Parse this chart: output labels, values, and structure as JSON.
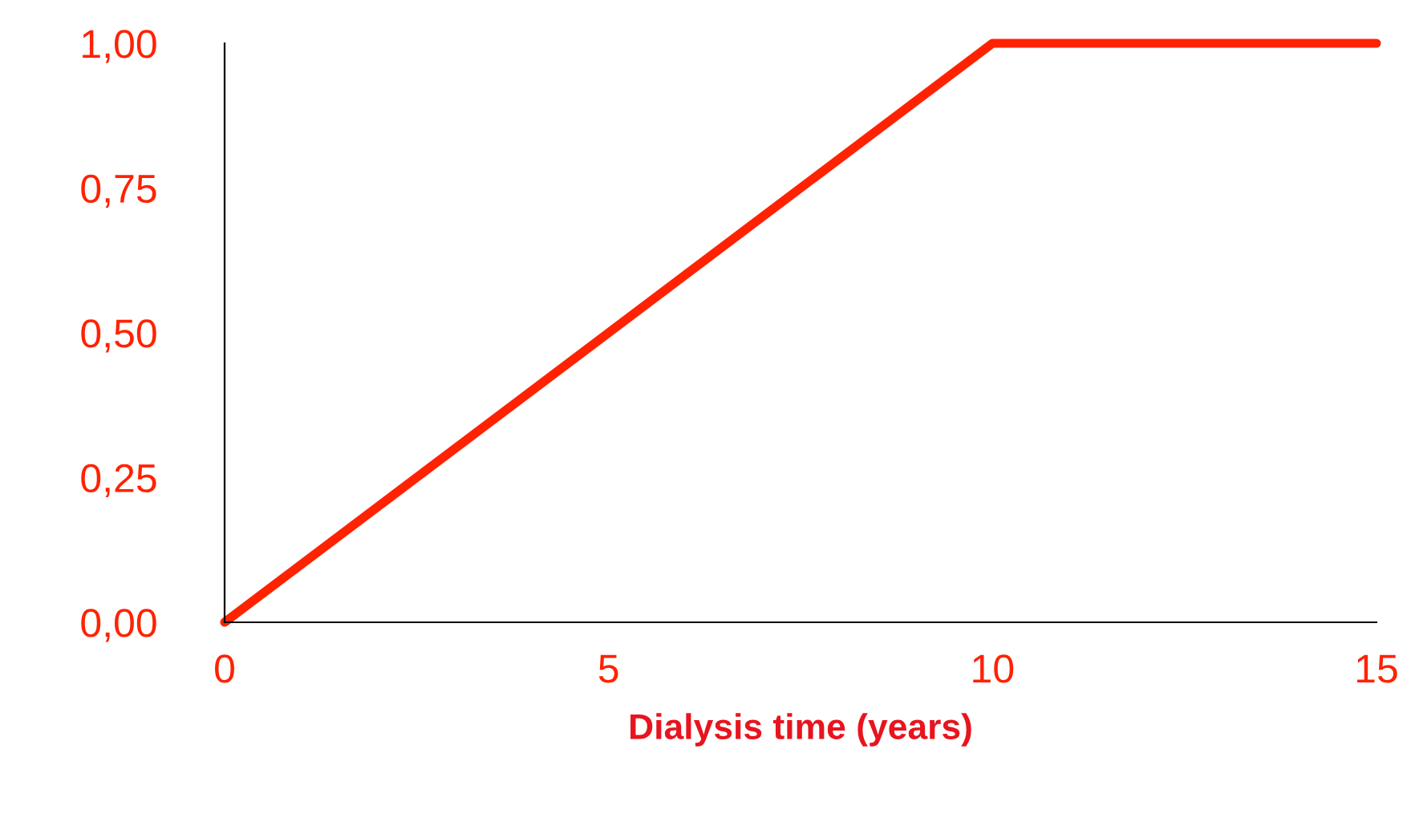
{
  "chart_data": {
    "type": "line",
    "xlabel": "Dialysis time (years)",
    "x": [
      0,
      10,
      15
    ],
    "series": [
      {
        "color": "#ff2200",
        "values": [
          0,
          1,
          1
        ]
      }
    ],
    "xlim": [
      0,
      15
    ],
    "ylim": [
      0,
      1
    ],
    "xticks": [
      0,
      5,
      10,
      15
    ],
    "yticks": [
      {
        "value": 0,
        "label": "0,00"
      },
      {
        "value": 0.25,
        "label": "0,25"
      },
      {
        "value": 0.5,
        "label": "0,50"
      },
      {
        "value": 0.75,
        "label": "0,75"
      },
      {
        "value": 1,
        "label": "1,00"
      }
    ],
    "grid": false,
    "legend": false,
    "marker": "none",
    "line_style": "solid"
  }
}
